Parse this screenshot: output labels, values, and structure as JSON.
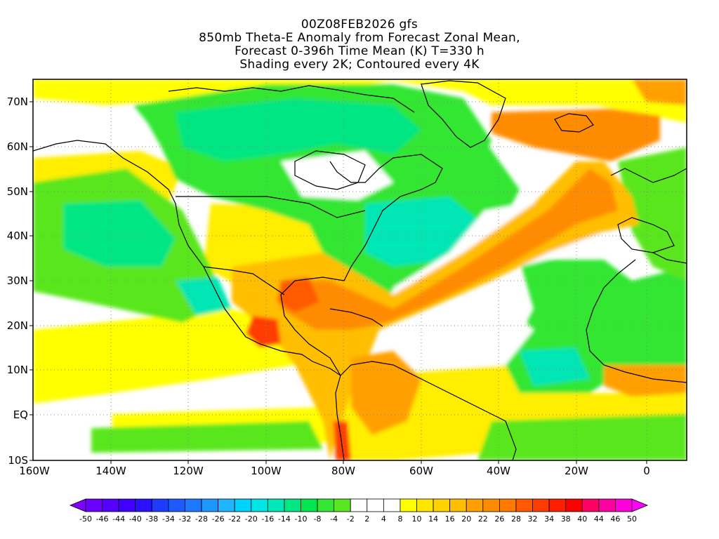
{
  "header": {
    "lines": [
      "00Z08FEB2026 gfs",
      "850mb Theta-E Anomaly from Forecast Zonal Mean,",
      "Forecast 0-396h Time Mean (K) T=330 h",
      "Shading every 2K; Contoured every 4K"
    ]
  },
  "map": {
    "lat_labels": [
      "70N",
      "60N",
      "50N",
      "40N",
      "30N",
      "20N",
      "10N",
      "EQ",
      "10S"
    ],
    "lon_labels": [
      "160W",
      "140W",
      "120W",
      "100W",
      "80W",
      "60W",
      "40W",
      "20W",
      "0"
    ]
  },
  "colorbar": {
    "labels": [
      "-50",
      "-46",
      "-44",
      "-40",
      "-38",
      "-34",
      "-32",
      "-28",
      "-26",
      "-22",
      "-20",
      "-16",
      "-14",
      "-10",
      "-8",
      "-4",
      "-2",
      "2",
      "4",
      "8",
      "10",
      "14",
      "16",
      "20",
      "22",
      "26",
      "28",
      "32",
      "34",
      "38",
      "40",
      "44",
      "46",
      "50"
    ],
    "colors": [
      "#7f00ff",
      "#6a00ff",
      "#5500ff",
      "#3f00ff",
      "#2a10ff",
      "#1e3cff",
      "#1e5aff",
      "#1e78ff",
      "#1e96ff",
      "#1eb4ff",
      "#00d2ff",
      "#00e6e6",
      "#00e6b4",
      "#00e682",
      "#00e650",
      "#32e632",
      "#5ae61e",
      "#ffffff",
      "#ffffff",
      "#ffffff",
      "#ffff00",
      "#ffe600",
      "#ffd200",
      "#ffbe00",
      "#ffa000",
      "#ff8c00",
      "#ff7800",
      "#ff5a00",
      "#ff3c00",
      "#ff1e00",
      "#ff0000",
      "#ff0064",
      "#ff00a0",
      "#ff00dc",
      "#ff00ff"
    ]
  }
}
